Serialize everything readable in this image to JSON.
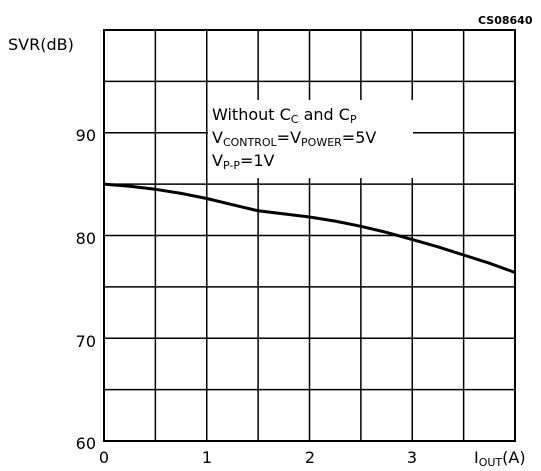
{
  "chart_data": {
    "type": "line",
    "code": "CS08640",
    "ylabel": "SVR(dB)",
    "xlabel": {
      "main": "I",
      "sub": "OUT",
      "unit": "(A)"
    },
    "xlim": [
      0,
      4
    ],
    "ylim": [
      60,
      100
    ],
    "x_ticks": [
      "0",
      "1",
      "2",
      "3"
    ],
    "y_ticks": [
      "90",
      "80",
      "70",
      "60"
    ],
    "grid": true,
    "annotation": {
      "line1_main": "Without C",
      "line1_sub1": "C",
      "line1_mid": " and C",
      "line1_sub2": "P",
      "line2_v1": "V",
      "line2_sub1": "CONTROL",
      "line2_eq1": "=V",
      "line2_sub2": "POWER",
      "line2_eq2": "=5V",
      "line3_v": "V",
      "line3_sub": "P-P",
      "line3_eq": "=1V"
    },
    "series": [
      {
        "color": "#000000",
        "x": [
          0,
          0.25,
          0.5,
          0.75,
          1.0,
          1.25,
          1.5,
          1.75,
          2.0,
          2.25,
          2.5,
          2.75,
          3.0,
          3.25,
          3.5,
          3.75,
          4.0
        ],
        "y": [
          85,
          84.8,
          84.5,
          84.1,
          83.6,
          83.0,
          82.4,
          82.1,
          81.8,
          81.4,
          80.9,
          80.3,
          79.6,
          78.9,
          78.1,
          77.3,
          76.4
        ]
      }
    ]
  }
}
